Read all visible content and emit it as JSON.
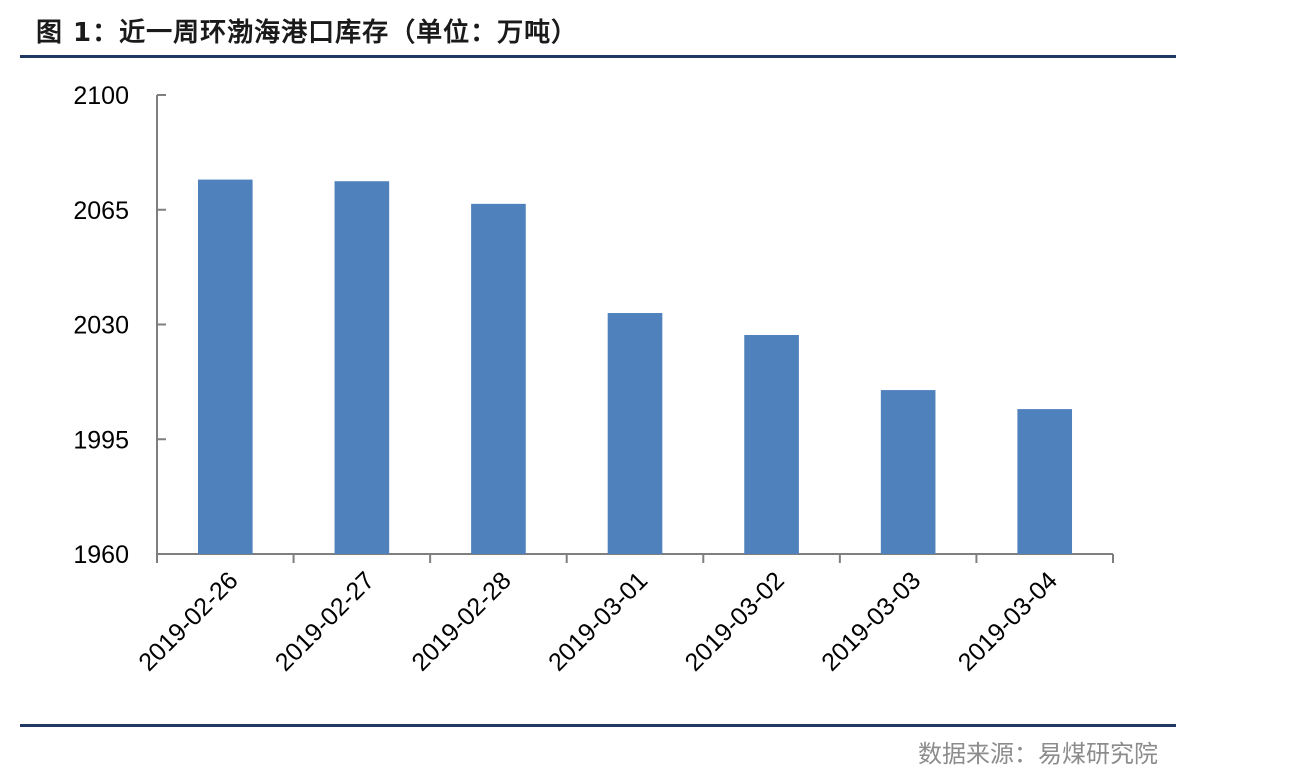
{
  "header": {
    "title": "图 1：近一周环渤海港口库存（单位：万吨）"
  },
  "footer": {
    "source": "数据来源：易煤研究院"
  },
  "chart_data": {
    "type": "bar",
    "title": "图 1：近一周环渤海港口库存（单位：万吨）",
    "xlabel": "",
    "ylabel": "",
    "categories": [
      "2019-02-26",
      "2019-02-27",
      "2019-02-28",
      "2019-03-01",
      "2019-03-02",
      "2019-03-03",
      "2019-03-04"
    ],
    "values": [
      2074.2,
      2073.7,
      2066.8,
      2033.5,
      2026.8,
      2010.0,
      2004.2
    ],
    "ylim": [
      1960,
      2100
    ],
    "yticks": [
      1960,
      1995,
      2030,
      2065,
      2100
    ],
    "grid": false,
    "legend": "none",
    "bar_color": "#4f81bd",
    "axis_color": "#7f7f7f"
  }
}
